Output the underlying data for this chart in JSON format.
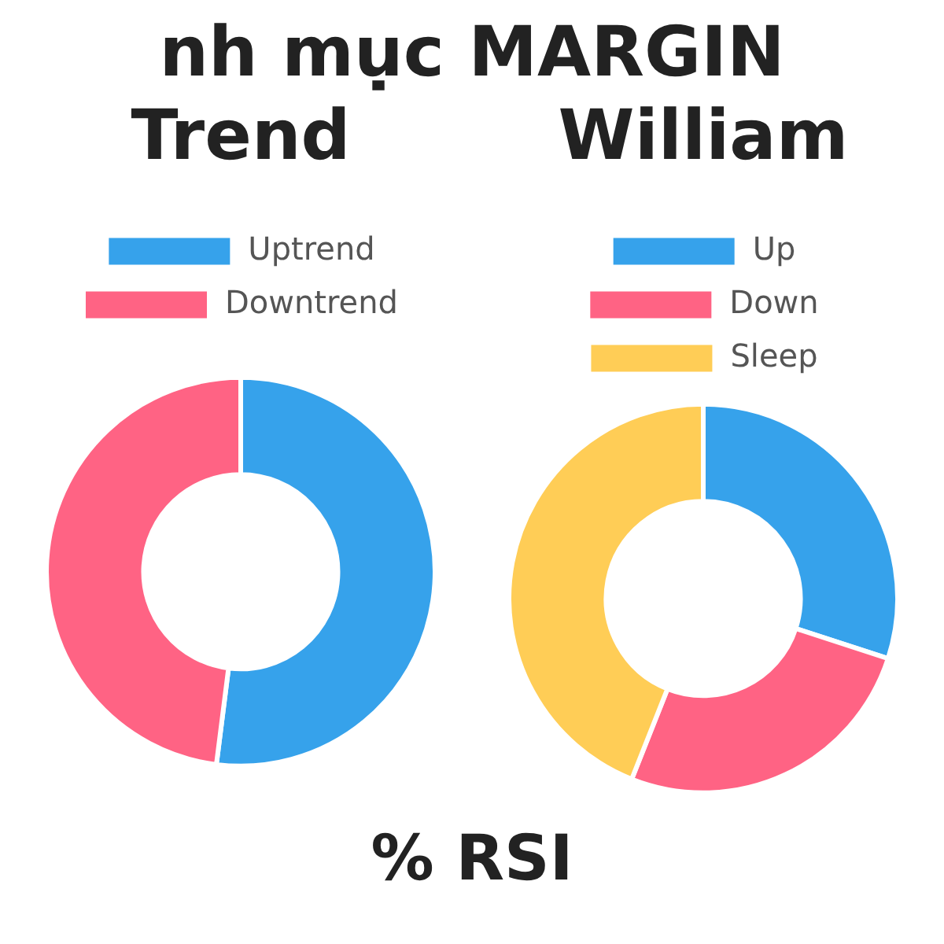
{
  "chart_data": [
    {
      "type": "other",
      "title": "nh mục MARGIN"
    },
    {
      "type": "donut",
      "title": "Trend",
      "categories": [
        "Uptrend",
        "Downtrend"
      ],
      "values": [
        52,
        48
      ],
      "colors": [
        "#36a2eb",
        "#ff6384"
      ],
      "legend": "top"
    },
    {
      "type": "donut",
      "title": "William",
      "categories": [
        "Up",
        "Down",
        "Sleep"
      ],
      "values": [
        30,
        26,
        44
      ],
      "colors": [
        "#36a2eb",
        "#ff6384",
        "#ffcd56"
      ],
      "legend": "top"
    },
    {
      "type": "other",
      "title": "% RSI"
    }
  ]
}
